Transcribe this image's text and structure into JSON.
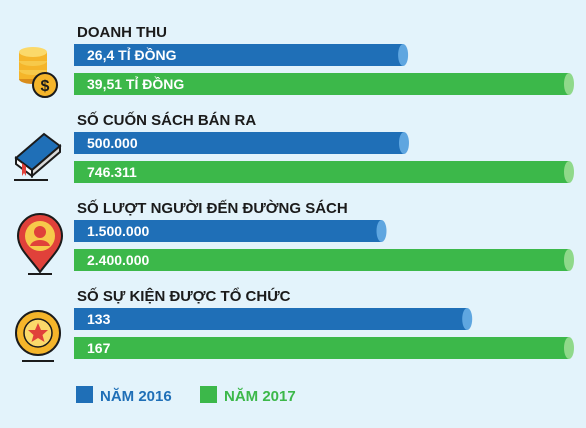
{
  "colors": {
    "background": "#e3f3fb",
    "series_2016": "#1f6fb7",
    "series_2016_cap": "#5fa6e0",
    "series_2017": "#3cb84a",
    "series_2017_cap": "#8fd98a"
  },
  "chart_data": {
    "type": "bar",
    "orientation": "horizontal",
    "grid": false,
    "legend_position": "bottom-left",
    "series_names": [
      "NĂM 2016",
      "NĂM 2017"
    ],
    "groups": [
      {
        "title": "DOANH THU",
        "icon": "coins-icon",
        "bars": [
          {
            "label": "26,4 TỈ ĐỒNG",
            "value": 26.4
          },
          {
            "label": "39,51 TỈ ĐỒNG",
            "value": 39.51
          }
        ]
      },
      {
        "title": "SỐ CUỐN SÁCH BÁN RA",
        "icon": "book-icon",
        "bars": [
          {
            "label": "500.000",
            "value": 500000
          },
          {
            "label": "746.311",
            "value": 746311
          }
        ]
      },
      {
        "title": "SỐ LƯỢT NGƯỜI ĐẾN ĐƯỜNG SÁCH",
        "icon": "visitor-pin-icon",
        "bars": [
          {
            "label": "1.500.000",
            "value": 1500000
          },
          {
            "label": "2.400.000",
            "value": 2400000
          }
        ]
      },
      {
        "title": "SỐ SỰ KIỆN ĐƯỢC TỔ CHỨC",
        "icon": "star-badge-icon",
        "bars": [
          {
            "label": "133",
            "value": 133
          },
          {
            "label": "167",
            "value": 167
          }
        ]
      }
    ]
  }
}
